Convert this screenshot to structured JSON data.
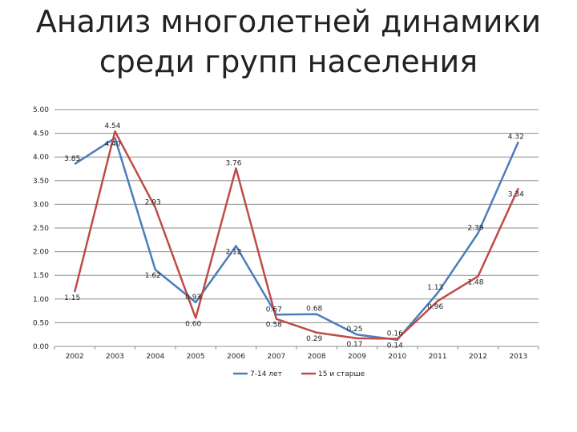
{
  "page": {
    "title_line1": "Анализ многолетней динамики",
    "title_line2": "среди групп населения"
  },
  "chart_data": {
    "type": "line",
    "title": "Анализ многолетней динамики среди групп населения",
    "categories": [
      "2002",
      "2003",
      "2004",
      "2005",
      "2006",
      "2007",
      "2008",
      "2009",
      "2010",
      "2011",
      "2012",
      "2013"
    ],
    "y_ticks": [
      "0.00",
      "0.50",
      "1.00",
      "1.50",
      "2.00",
      "2.50",
      "3.00",
      "3.50",
      "4.00",
      "4.50",
      "5.00"
    ],
    "ylim": [
      0,
      5
    ],
    "grid": true,
    "legend_position": "bottom",
    "series": [
      {
        "name": "7-14 лет",
        "color": "#4A7EBB",
        "values": [
          3.85,
          4.4,
          1.62,
          0.93,
          2.12,
          0.67,
          0.68,
          0.25,
          0.14,
          1.13,
          2.39,
          4.32
        ],
        "labels": [
          "3.85",
          "4.40",
          "1.62",
          "0.93",
          "2.12",
          "0.67",
          "0.68",
          "0.25",
          "0.14",
          "1.13",
          "2.39",
          "4.32"
        ]
      },
      {
        "name": "15 и старше",
        "color": "#BE4B48",
        "values": [
          1.15,
          4.54,
          2.93,
          0.6,
          3.76,
          0.58,
          0.29,
          0.17,
          0.16,
          0.96,
          1.48,
          3.34
        ],
        "labels": [
          "1.15",
          "4.54",
          "2.93",
          "0.60",
          "3.76",
          "0.58",
          "0.29",
          "0.17",
          "0.16",
          "0.96",
          "1.48",
          "3.34"
        ]
      }
    ]
  }
}
